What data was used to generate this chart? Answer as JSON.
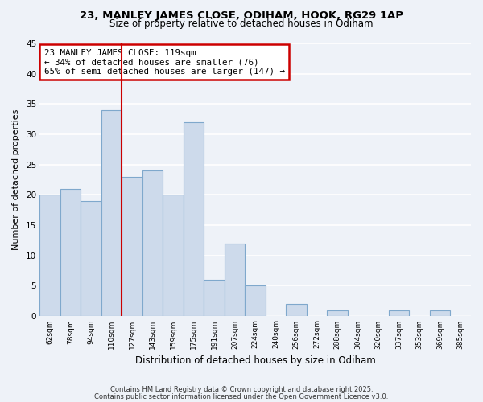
{
  "title1": "23, MANLEY JAMES CLOSE, ODIHAM, HOOK, RG29 1AP",
  "title2": "Size of property relative to detached houses in Odiham",
  "xlabel": "Distribution of detached houses by size in Odiham",
  "ylabel": "Number of detached properties",
  "categories": [
    "62sqm",
    "78sqm",
    "94sqm",
    "110sqm",
    "127sqm",
    "143sqm",
    "159sqm",
    "175sqm",
    "191sqm",
    "207sqm",
    "224sqm",
    "240sqm",
    "256sqm",
    "272sqm",
    "288sqm",
    "304sqm",
    "320sqm",
    "337sqm",
    "353sqm",
    "369sqm",
    "385sqm"
  ],
  "values": [
    20,
    21,
    19,
    34,
    23,
    24,
    20,
    32,
    6,
    12,
    5,
    0,
    2,
    0,
    1,
    0,
    0,
    1,
    0,
    1,
    0
  ],
  "bar_color": "#cddaeb",
  "bar_edgecolor": "#7fa8cc",
  "vline_color": "#cc0000",
  "vline_x_index": 3,
  "annotation_lines": [
    "23 MANLEY JAMES CLOSE: 119sqm",
    "← 34% of detached houses are smaller (76)",
    "65% of semi-detached houses are larger (147) →"
  ],
  "annotation_box_edgecolor": "#cc0000",
  "annotation_box_facecolor": "#ffffff",
  "ylim": [
    0,
    45
  ],
  "yticks": [
    0,
    5,
    10,
    15,
    20,
    25,
    30,
    35,
    40,
    45
  ],
  "background_color": "#eef2f8",
  "grid_color": "#ffffff",
  "footer1": "Contains HM Land Registry data © Crown copyright and database right 2025.",
  "footer2": "Contains public sector information licensed under the Open Government Licence v3.0."
}
